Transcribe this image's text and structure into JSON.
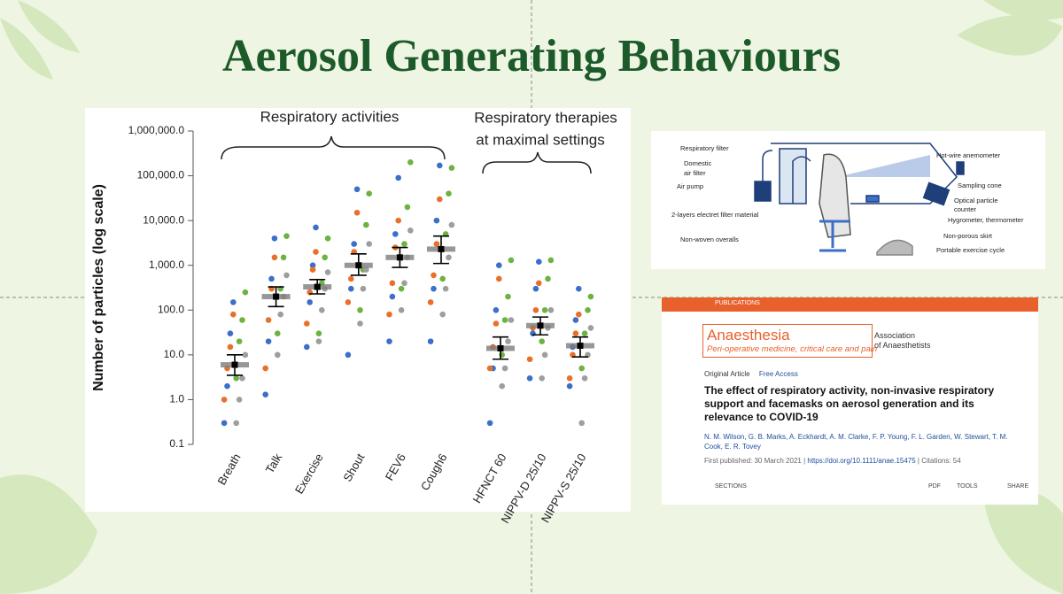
{
  "title": "Aerosol Generating Behaviours",
  "chart_data": {
    "type": "strip",
    "ylabel": "Number of particles (log scale)",
    "annotations": [
      "Respiratory activities",
      "Respiratory therapies",
      "at maximal settings"
    ],
    "categories": [
      "Breath",
      "Talk",
      "Exercise",
      "Shout",
      "FEV6",
      "Cough6",
      "HFNCT 60",
      "NIPPV-D 25/10",
      "NIPPV-S 25/10"
    ],
    "log_y": true,
    "ylim": [
      0.1,
      1000000
    ],
    "yticks": [
      0.1,
      {
        "value": 1,
        "label": "1.0"
      },
      {
        "value": 10,
        "label": "10.0"
      },
      {
        "value": 100,
        "label": "100.0"
      },
      {
        "value": 1000,
        "label": "1,000.0"
      },
      {
        "value": 10000,
        "label": "10,000.0"
      },
      {
        "value": 100000,
        "label": "100,000.0"
      },
      {
        "value": 1000000,
        "label": "1,000,000.0"
      }
    ],
    "means": [
      6,
      200,
      330,
      1000,
      1500,
      2300,
      14,
      45,
      16
    ],
    "lower": [
      3.5,
      120,
      230,
      600,
      900,
      1100,
      8,
      28,
      9
    ],
    "upper": [
      10,
      330,
      480,
      1800,
      2500,
      4500,
      25,
      70,
      25
    ],
    "series": [
      {
        "color": "#3b6fc9",
        "values": [
          [
            0.3,
            2,
            30,
            150
          ],
          [
            1.3,
            20,
            500,
            4000
          ],
          [
            15,
            150,
            1000,
            7000
          ],
          [
            10,
            300,
            3000,
            50000
          ],
          [
            20,
            200,
            5000,
            90000
          ],
          [
            20,
            300,
            10000,
            170000
          ],
          [
            0.3,
            5,
            100,
            1000
          ],
          [
            3,
            30,
            300,
            1200
          ],
          [
            2,
            15,
            60,
            300
          ]
        ]
      },
      {
        "color": "#6db33f",
        "values": [
          [
            3,
            20,
            60,
            250
          ],
          [
            30,
            300,
            1500,
            4500
          ],
          [
            30,
            400,
            1500,
            4000
          ],
          [
            100,
            800,
            8000,
            40000
          ],
          [
            300,
            3000,
            20000,
            200000
          ],
          [
            500,
            5000,
            40000,
            150000
          ],
          [
            10,
            60,
            200,
            1300
          ],
          [
            20,
            100,
            500,
            1300
          ],
          [
            5,
            30,
            100,
            200
          ]
        ]
      },
      {
        "color": "#e8702a",
        "values": [
          [
            1,
            5,
            15,
            80
          ],
          [
            5,
            60,
            300,
            1500
          ],
          [
            50,
            250,
            800,
            2000
          ],
          [
            150,
            500,
            2000,
            15000
          ],
          [
            80,
            400,
            2500,
            10000
          ],
          [
            150,
            600,
            3000,
            30000
          ],
          [
            5,
            15,
            50,
            500
          ],
          [
            8,
            40,
            100,
            400
          ],
          [
            3,
            10,
            30,
            80
          ]
        ]
      },
      {
        "color": "#9e9e9e",
        "values": [
          [
            0.3,
            1,
            3,
            10
          ],
          [
            10,
            80,
            200,
            600
          ],
          [
            20,
            100,
            300,
            700
          ],
          [
            50,
            300,
            800,
            3000
          ],
          [
            100,
            400,
            1500,
            6000
          ],
          [
            80,
            300,
            1500,
            8000
          ],
          [
            2,
            5,
            20,
            60
          ],
          [
            3,
            10,
            40,
            100
          ],
          [
            0.3,
            3,
            10,
            40
          ]
        ]
      }
    ]
  },
  "diagram": {
    "labels": [
      "Respiratory filter",
      "Domestic",
      "air filter",
      "Air pump",
      "2-layers electret filter material",
      "Non-woven overalls",
      "Hot-wire anemometer",
      "Sampling cone",
      "Optical particle",
      "counter",
      "Hygrometer, thermometer",
      "Non-porous skirt",
      "Portable exercise cycle"
    ]
  },
  "article": {
    "nav": "PUBLICATIONS",
    "journal": "Anaesthesia",
    "journal_sub": "Peri-operative medicine, critical care and pain",
    "association": [
      "Association",
      "of Anaesthetists"
    ],
    "type": "Original Article",
    "access": "Free Access",
    "title": "The effect of respiratory activity, non-invasive respiratory support and facemasks on aerosol generation and its relevance to COVID-19",
    "authors": "N. M. Wilson, G. B. Marks, A. Eckhardt, A. M. Clarke, F. P. Young, F. L. Garden, W. Stewart, T. M. Cook, E. R. Tovey",
    "published": "First published: 30 March 2021",
    "doi": "https://doi.org/10.1111/anae.15475",
    "citations": "Citations: 54",
    "tools": [
      "SECTIONS",
      "PDF",
      "TOOLS",
      "SHARE"
    ]
  }
}
